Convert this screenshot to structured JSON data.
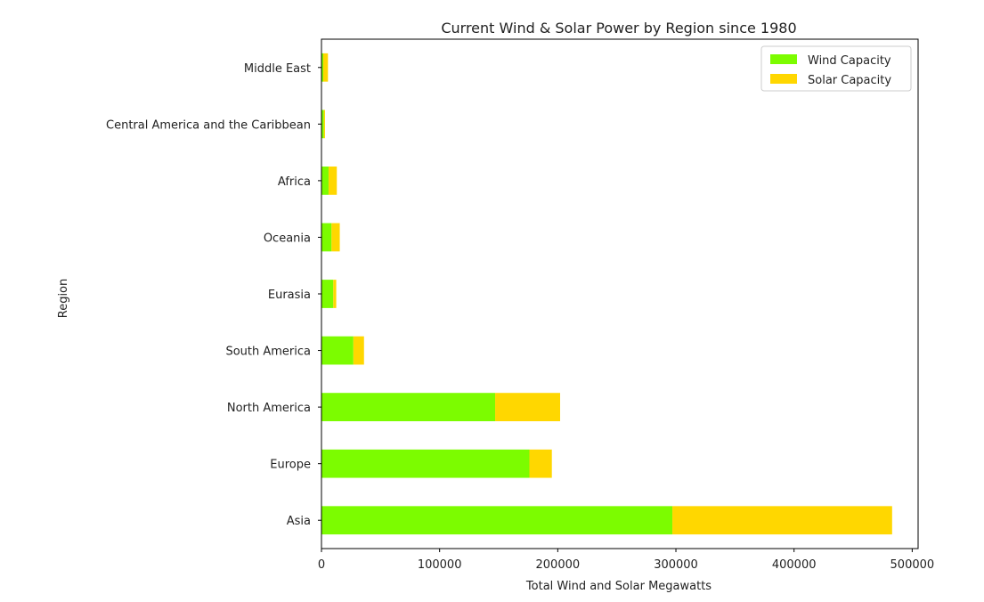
{
  "chart_data": {
    "type": "bar",
    "orientation": "horizontal",
    "stacked": true,
    "title": "Current Wind & Solar Power by Region since 1980",
    "xlabel": "Total Wind and Solar Megawatts",
    "ylabel": "Region",
    "xlim": [
      0,
      505000
    ],
    "xticks": [
      0,
      100000,
      200000,
      300000,
      400000,
      500000
    ],
    "xtick_labels": [
      "0",
      "100000",
      "200000",
      "300000",
      "400000",
      "500000"
    ],
    "categories": [
      "Asia",
      "Europe",
      "North America",
      "South America",
      "Eurasia",
      "Oceania",
      "Africa",
      "Central America and the Caribbean",
      "Middle East"
    ],
    "series": [
      {
        "name": "Wind Capacity",
        "color": "#7CFC00",
        "values": [
          297000,
          176000,
          147000,
          27000,
          10000,
          8500,
          6000,
          2000,
          1500
        ]
      },
      {
        "name": "Solar Capacity",
        "color": "#FFD700",
        "values": [
          186000,
          19000,
          55000,
          9000,
          2500,
          7000,
          7000,
          1000,
          4000
        ]
      }
    ],
    "legend_position": "upper right",
    "grid": false
  }
}
